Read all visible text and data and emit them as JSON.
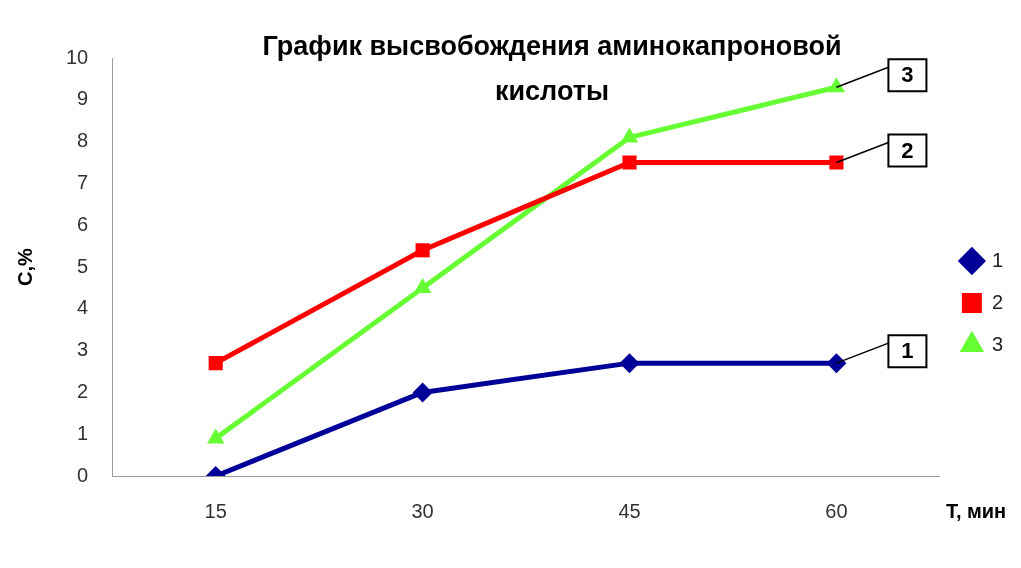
{
  "chart_data": {
    "type": "line",
    "title": "График высвобождения аминокапроновой кислоты",
    "xlabel": "T, мин",
    "ylabel": "C,%",
    "categories": [
      "15",
      "30",
      "45",
      "60"
    ],
    "series": [
      {
        "name": "1",
        "color": "#000099",
        "marker": "diamond",
        "values": [
          0,
          2,
          2.7,
          2.7
        ]
      },
      {
        "name": "2",
        "color": "#ff0000",
        "marker": "square",
        "values": [
          2.7,
          5.4,
          7.5,
          7.5
        ]
      },
      {
        "name": "3",
        "color": "#66ff33",
        "marker": "triangle",
        "values": [
          0.9,
          4.5,
          8.1,
          9.3
        ]
      }
    ],
    "ylim": [
      0,
      10
    ],
    "yticks": [
      0,
      1,
      2,
      3,
      4,
      5,
      6,
      7,
      8,
      9,
      10
    ],
    "grid": false,
    "legend": "right",
    "annotations": [
      {
        "text": "1",
        "x": "60",
        "y": 2.7
      },
      {
        "text": "2",
        "x": "60",
        "y": 7.5
      },
      {
        "text": "3",
        "x": "60",
        "y": 9.3
      }
    ]
  }
}
